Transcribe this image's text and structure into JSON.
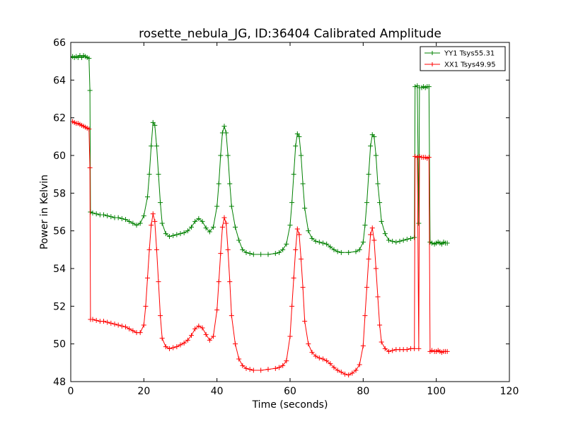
{
  "chart_data": {
    "type": "line",
    "title": "rosette_nebula_JG, ID:36404 Calibrated Amplitude",
    "xlabel": "Time (seconds)",
    "ylabel": "Power in Kelvin",
    "xlim": [
      0,
      120
    ],
    "ylim": [
      48,
      66
    ],
    "xticks": [
      "0",
      "20",
      "40",
      "60",
      "80",
      "100",
      "120"
    ],
    "yticks": [
      "48",
      "50",
      "52",
      "54",
      "56",
      "58",
      "60",
      "62",
      "64",
      "66"
    ],
    "grid": false,
    "legend_position": "top-right",
    "marker": "+",
    "series": [
      {
        "name": "YY1 Tsys55.31",
        "color": "#008000",
        "points": [
          [
            0,
            65.2
          ],
          [
            0.5,
            65.25
          ],
          [
            1,
            65.2
          ],
          [
            1.5,
            65.25
          ],
          [
            2,
            65.2
          ],
          [
            2.5,
            65.3
          ],
          [
            3,
            65.2
          ],
          [
            3.5,
            65.3
          ],
          [
            4,
            65.25
          ],
          [
            4.5,
            65.2
          ],
          [
            5,
            65.15
          ],
          [
            5.25,
            63.45
          ],
          [
            5.4,
            57.0
          ],
          [
            6,
            56.95
          ],
          [
            7,
            56.9
          ],
          [
            8,
            56.85
          ],
          [
            9,
            56.85
          ],
          [
            10,
            56.8
          ],
          [
            11,
            56.75
          ],
          [
            12,
            56.7
          ],
          [
            13,
            56.7
          ],
          [
            14,
            56.65
          ],
          [
            15,
            56.6
          ],
          [
            16,
            56.5
          ],
          [
            17,
            56.4
          ],
          [
            18,
            56.3
          ],
          [
            19,
            56.4
          ],
          [
            20,
            56.8
          ],
          [
            21,
            57.8
          ],
          [
            21.5,
            59.0
          ],
          [
            22,
            60.5
          ],
          [
            22.5,
            61.75
          ],
          [
            23,
            61.6
          ],
          [
            23.5,
            60.5
          ],
          [
            24,
            59.0
          ],
          [
            24.5,
            57.5
          ],
          [
            25,
            56.4
          ],
          [
            26,
            55.85
          ],
          [
            27,
            55.7
          ],
          [
            28,
            55.75
          ],
          [
            29,
            55.8
          ],
          [
            30,
            55.85
          ],
          [
            31,
            55.9
          ],
          [
            32,
            56.0
          ],
          [
            33,
            56.2
          ],
          [
            34,
            56.5
          ],
          [
            35,
            56.65
          ],
          [
            36,
            56.5
          ],
          [
            37,
            56.15
          ],
          [
            38,
            55.95
          ],
          [
            39,
            56.2
          ],
          [
            40,
            57.3
          ],
          [
            40.5,
            58.5
          ],
          [
            41,
            60.0
          ],
          [
            41.5,
            61.2
          ],
          [
            42,
            61.55
          ],
          [
            42.5,
            61.2
          ],
          [
            43,
            60.0
          ],
          [
            43.5,
            58.5
          ],
          [
            44,
            57.3
          ],
          [
            45,
            56.2
          ],
          [
            46,
            55.5
          ],
          [
            47,
            55.0
          ],
          [
            48,
            54.85
          ],
          [
            49,
            54.8
          ],
          [
            50,
            54.75
          ],
          [
            52,
            54.75
          ],
          [
            54,
            54.75
          ],
          [
            56,
            54.8
          ],
          [
            57,
            54.85
          ],
          [
            58,
            55.0
          ],
          [
            59,
            55.3
          ],
          [
            60,
            56.3
          ],
          [
            60.5,
            57.5
          ],
          [
            61,
            59.0
          ],
          [
            61.5,
            60.5
          ],
          [
            62,
            61.15
          ],
          [
            62.5,
            61.0
          ],
          [
            63,
            60.0
          ],
          [
            63.5,
            58.5
          ],
          [
            64,
            57.2
          ],
          [
            65,
            56.0
          ],
          [
            66,
            55.6
          ],
          [
            67,
            55.45
          ],
          [
            68,
            55.4
          ],
          [
            69,
            55.35
          ],
          [
            70,
            55.3
          ],
          [
            71,
            55.15
          ],
          [
            72,
            55.0
          ],
          [
            73,
            54.9
          ],
          [
            74,
            54.85
          ],
          [
            76,
            54.85
          ],
          [
            78,
            54.9
          ],
          [
            79,
            55.0
          ],
          [
            80,
            55.4
          ],
          [
            80.5,
            56.3
          ],
          [
            81,
            57.5
          ],
          [
            81.5,
            59.0
          ],
          [
            82,
            60.5
          ],
          [
            82.5,
            61.1
          ],
          [
            83,
            61.0
          ],
          [
            83.5,
            60.0
          ],
          [
            84,
            58.5
          ],
          [
            84.5,
            57.5
          ],
          [
            85,
            56.5
          ],
          [
            86,
            55.85
          ],
          [
            87,
            55.5
          ],
          [
            88,
            55.45
          ],
          [
            89,
            55.4
          ],
          [
            90,
            55.45
          ],
          [
            91,
            55.5
          ],
          [
            92,
            55.55
          ],
          [
            93,
            55.6
          ],
          [
            94,
            55.65
          ],
          [
            94.2,
            63.65
          ],
          [
            94.8,
            63.7
          ],
          [
            95.2,
            56.4
          ],
          [
            95.4,
            63.6
          ],
          [
            96,
            63.6
          ],
          [
            96.5,
            63.65
          ],
          [
            97,
            63.6
          ],
          [
            97.5,
            63.65
          ],
          [
            98,
            63.65
          ],
          [
            98.3,
            55.4
          ],
          [
            98.8,
            55.35
          ],
          [
            99.5,
            55.3
          ],
          [
            100,
            55.35
          ],
          [
            100.5,
            55.4
          ],
          [
            101,
            55.35
          ],
          [
            101.5,
            55.3
          ],
          [
            102,
            55.4
          ],
          [
            102.5,
            55.35
          ],
          [
            103,
            55.35
          ]
        ]
      },
      {
        "name": "XX1 Tsys49.95",
        "color": "#ff0000",
        "points": [
          [
            0,
            61.8
          ],
          [
            0.5,
            61.8
          ],
          [
            1,
            61.75
          ],
          [
            1.5,
            61.7
          ],
          [
            2,
            61.7
          ],
          [
            2.5,
            61.65
          ],
          [
            3,
            61.6
          ],
          [
            3.5,
            61.55
          ],
          [
            4,
            61.5
          ],
          [
            4.5,
            61.45
          ],
          [
            5,
            61.4
          ],
          [
            5.25,
            59.35
          ],
          [
            5.4,
            51.3
          ],
          [
            6,
            51.3
          ],
          [
            7,
            51.25
          ],
          [
            8,
            51.2
          ],
          [
            9,
            51.2
          ],
          [
            10,
            51.15
          ],
          [
            11,
            51.1
          ],
          [
            12,
            51.05
          ],
          [
            13,
            51.0
          ],
          [
            14,
            50.95
          ],
          [
            15,
            50.9
          ],
          [
            16,
            50.8
          ],
          [
            17,
            50.7
          ],
          [
            18,
            50.6
          ],
          [
            19,
            50.6
          ],
          [
            20,
            51.0
          ],
          [
            20.5,
            52.0
          ],
          [
            21,
            53.5
          ],
          [
            21.5,
            55.0
          ],
          [
            22,
            56.3
          ],
          [
            22.5,
            56.9
          ],
          [
            23,
            56.5
          ],
          [
            23.5,
            55.0
          ],
          [
            24,
            53.3
          ],
          [
            24.5,
            51.5
          ],
          [
            25,
            50.3
          ],
          [
            26,
            49.85
          ],
          [
            27,
            49.75
          ],
          [
            28,
            49.8
          ],
          [
            29,
            49.85
          ],
          [
            30,
            49.95
          ],
          [
            31,
            50.05
          ],
          [
            32,
            50.2
          ],
          [
            33,
            50.45
          ],
          [
            34,
            50.8
          ],
          [
            35,
            50.95
          ],
          [
            36,
            50.85
          ],
          [
            37,
            50.5
          ],
          [
            38,
            50.2
          ],
          [
            39,
            50.4
          ],
          [
            40,
            51.8
          ],
          [
            40.5,
            53.3
          ],
          [
            41,
            54.8
          ],
          [
            41.5,
            56.2
          ],
          [
            42,
            56.7
          ],
          [
            42.5,
            56.4
          ],
          [
            43,
            55.0
          ],
          [
            43.5,
            53.3
          ],
          [
            44,
            51.5
          ],
          [
            45,
            50.0
          ],
          [
            46,
            49.2
          ],
          [
            47,
            48.85
          ],
          [
            48,
            48.7
          ],
          [
            49,
            48.65
          ],
          [
            50,
            48.6
          ],
          [
            52,
            48.6
          ],
          [
            54,
            48.65
          ],
          [
            56,
            48.7
          ],
          [
            57,
            48.75
          ],
          [
            58,
            48.85
          ],
          [
            59,
            49.1
          ],
          [
            60,
            50.4
          ],
          [
            60.5,
            52.0
          ],
          [
            61,
            53.5
          ],
          [
            61.5,
            55.0
          ],
          [
            62,
            56.1
          ],
          [
            62.5,
            55.8
          ],
          [
            63,
            54.5
          ],
          [
            63.5,
            53.0
          ],
          [
            64,
            51.2
          ],
          [
            65,
            50.0
          ],
          [
            66,
            49.55
          ],
          [
            67,
            49.35
          ],
          [
            68,
            49.25
          ],
          [
            69,
            49.2
          ],
          [
            70,
            49.1
          ],
          [
            71,
            48.95
          ],
          [
            72,
            48.75
          ],
          [
            73,
            48.6
          ],
          [
            74,
            48.5
          ],
          [
            75,
            48.4
          ],
          [
            76,
            48.35
          ],
          [
            77,
            48.45
          ],
          [
            78,
            48.6
          ],
          [
            79,
            48.9
          ],
          [
            80,
            49.9
          ],
          [
            80.5,
            51.5
          ],
          [
            81,
            53.0
          ],
          [
            81.5,
            54.5
          ],
          [
            82,
            55.8
          ],
          [
            82.5,
            56.15
          ],
          [
            83,
            55.5
          ],
          [
            83.5,
            54.0
          ],
          [
            84,
            52.5
          ],
          [
            84.5,
            51.0
          ],
          [
            85,
            50.1
          ],
          [
            86,
            49.75
          ],
          [
            87,
            49.6
          ],
          [
            88,
            49.65
          ],
          [
            89,
            49.7
          ],
          [
            90,
            49.7
          ],
          [
            91,
            49.7
          ],
          [
            92,
            49.7
          ],
          [
            93,
            49.75
          ],
          [
            94,
            49.75
          ],
          [
            94.2,
            59.95
          ],
          [
            94.8,
            59.9
          ],
          [
            95.2,
            49.75
          ],
          [
            95.4,
            59.95
          ],
          [
            96,
            59.9
          ],
          [
            96.5,
            59.9
          ],
          [
            97,
            59.9
          ],
          [
            97.5,
            59.85
          ],
          [
            98,
            59.9
          ],
          [
            98.3,
            49.6
          ],
          [
            98.8,
            49.65
          ],
          [
            99.5,
            49.6
          ],
          [
            100,
            49.6
          ],
          [
            100.5,
            49.65
          ],
          [
            101,
            49.6
          ],
          [
            101.5,
            49.55
          ],
          [
            102,
            49.6
          ],
          [
            102.5,
            49.6
          ],
          [
            103,
            49.6
          ]
        ]
      }
    ]
  }
}
